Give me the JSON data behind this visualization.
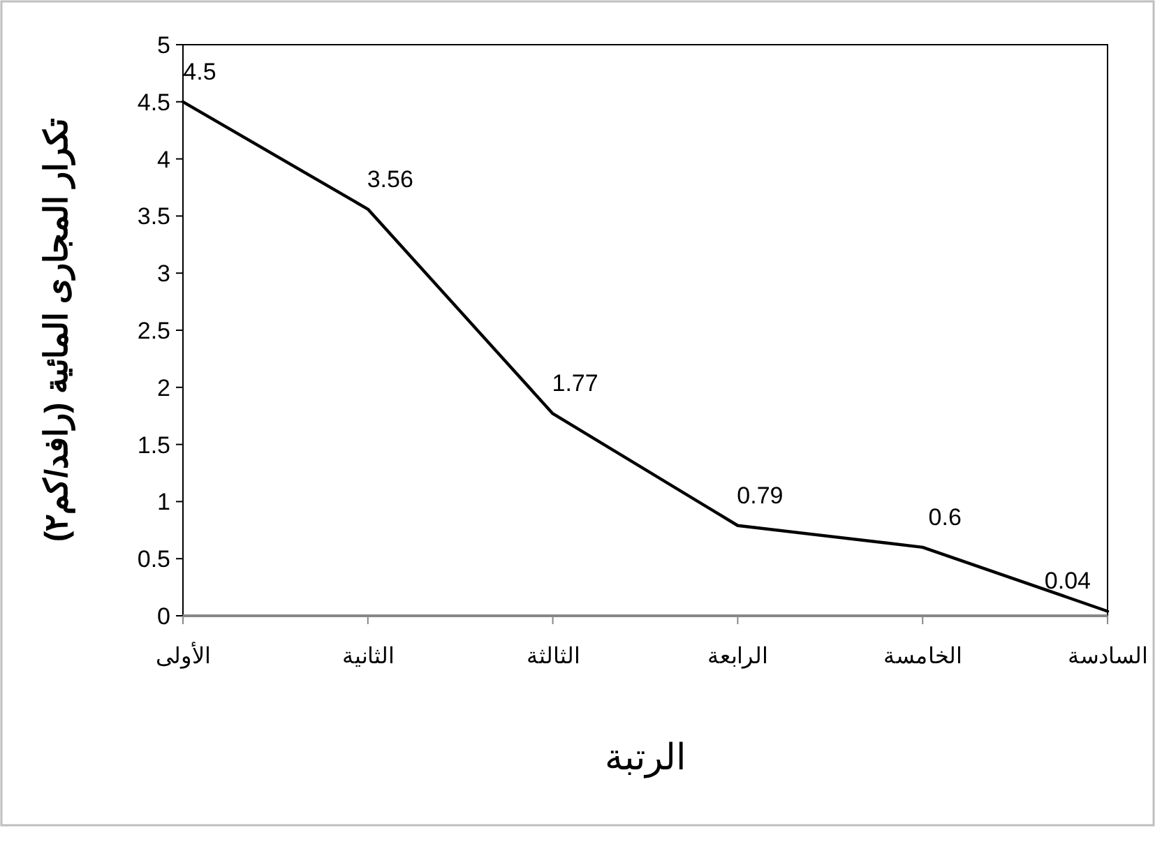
{
  "chart_data": {
    "type": "line",
    "xlabel": "الرتبة",
    "ylabel": "تكرار المجارى المائية (رافد/كم٢)",
    "categories": [
      "الأولى",
      "الثانية",
      "الثالثة",
      "الرابعة",
      "الخامسة",
      "السادسة"
    ],
    "series": [
      {
        "color": "#000000",
        "values": [
          4.5,
          3.56,
          1.77,
          0.79,
          0.6,
          0.04
        ]
      }
    ],
    "ylim": [
      0,
      5
    ],
    "yticks": [
      0,
      0.5,
      1,
      1.5,
      2,
      2.5,
      3,
      3.5,
      4,
      4.5,
      5
    ],
    "grid": false,
    "marker": "none",
    "line_style": "solid",
    "data_labels": true
  }
}
